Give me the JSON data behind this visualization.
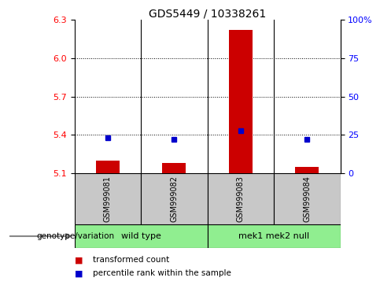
{
  "title": "GDS5449 / 10338261",
  "samples": [
    "GSM999081",
    "GSM999082",
    "GSM999083",
    "GSM999084"
  ],
  "red_bar_values": [
    5.2,
    5.18,
    6.22,
    5.15
  ],
  "blue_square_values": [
    5.375,
    5.365,
    5.435,
    5.365
  ],
  "bar_baseline": 5.1,
  "ylim": [
    5.1,
    6.3
  ],
  "yticks_left": [
    5.1,
    5.4,
    5.7,
    6.0,
    6.3
  ],
  "yticks_right": [
    0,
    25,
    50,
    75,
    100
  ],
  "ytick_right_labels": [
    "0",
    "25",
    "50",
    "75",
    "100%"
  ],
  "groups": [
    {
      "label": "wild type",
      "indices": [
        0,
        1
      ]
    },
    {
      "label": "mek1 mek2 null",
      "indices": [
        2,
        3
      ]
    }
  ],
  "group_label_prefix": "genotype/variation",
  "legend_red": "transformed count",
  "legend_blue": "percentile rank within the sample",
  "bar_color": "#CC0000",
  "square_color": "#0000CC",
  "sample_box_color": "#C8C8C8",
  "group_box_color": "#90EE90",
  "dotted_yticks": [
    5.4,
    5.7,
    6.0
  ],
  "bar_width": 0.35
}
